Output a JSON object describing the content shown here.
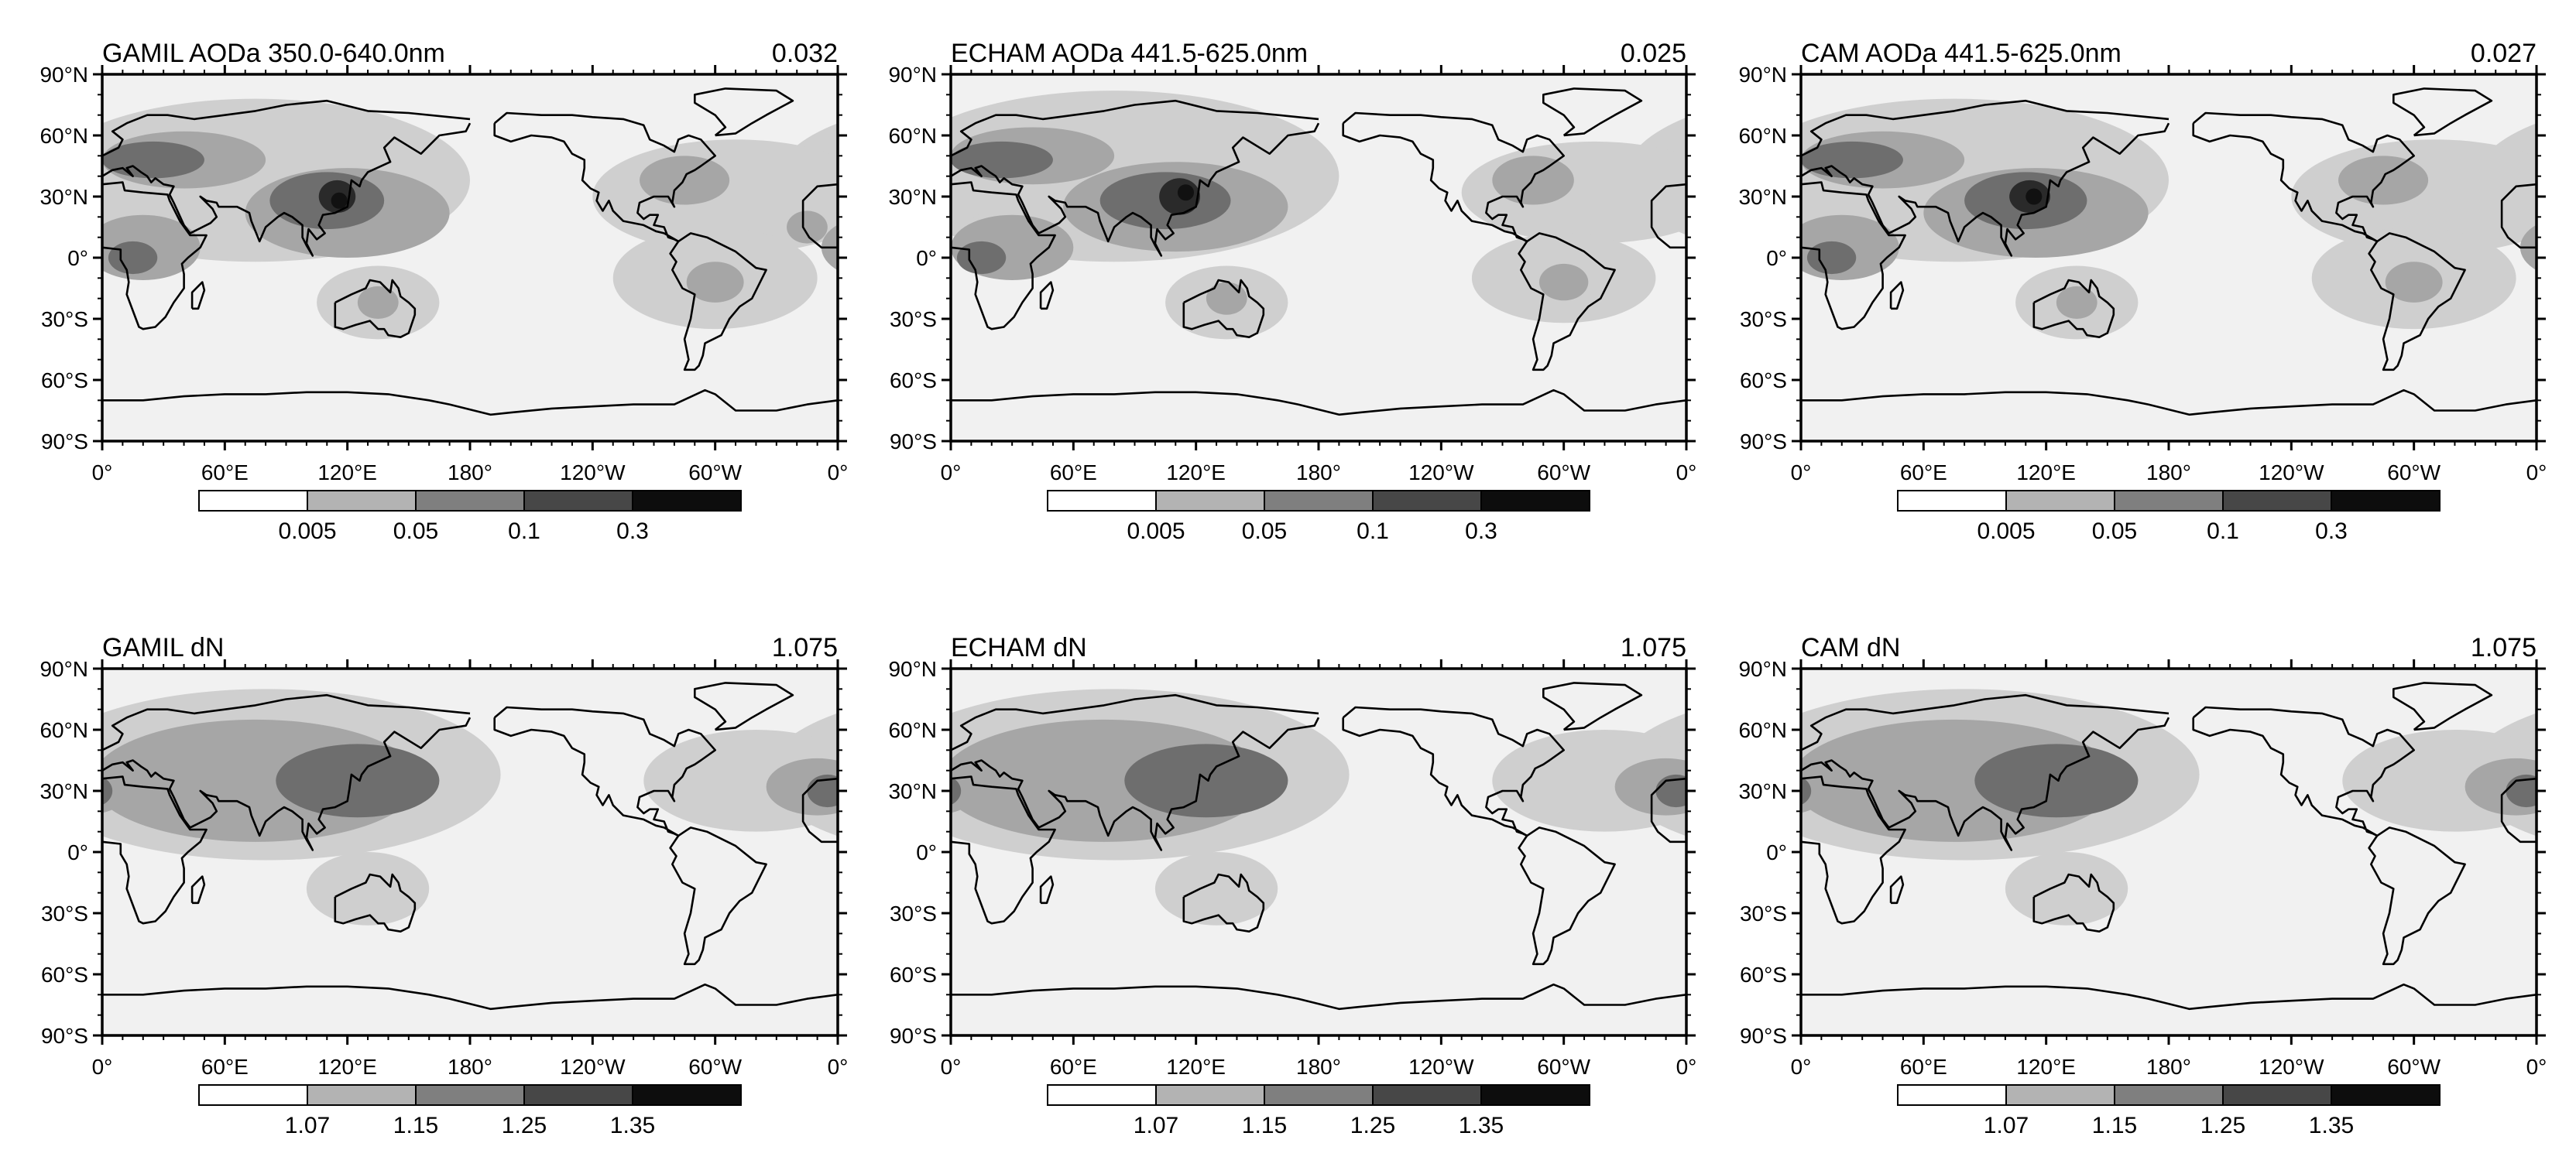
{
  "figure": {
    "longitude_ticks": [
      "0°",
      "60°E",
      "120°E",
      "180°",
      "120°W",
      "60°W",
      "0°"
    ],
    "latitude_ticks": [
      "90°N",
      "60°N",
      "30°N",
      "0°",
      "30°S",
      "60°S",
      "90°S"
    ],
    "colorbars": {
      "aod": {
        "labels": [
          "0.005",
          "0.05",
          "0.1",
          "0.3"
        ],
        "fills": [
          "#ffffff",
          "#b3b3b3",
          "#7f7f7f",
          "#474747",
          "#0d0d0d"
        ]
      },
      "dn": {
        "labels": [
          "1.07",
          "1.15",
          "1.25",
          "1.35"
        ],
        "fills": [
          "#ffffff",
          "#b3b3b3",
          "#7f7f7f",
          "#474747",
          "#0d0d0d"
        ]
      }
    },
    "background_fill": "#f1f1f1",
    "panels": [
      {
        "row": 0,
        "col": 0,
        "title_left": "GAMIL  AODa 350.0-640.0nm",
        "title_right": "0.032",
        "colorbar": "aod",
        "variant": "aod_gamil"
      },
      {
        "row": 0,
        "col": 1,
        "title_left": "ECHAM  AODa 441.5-625.0nm",
        "title_right": "0.025",
        "colorbar": "aod",
        "variant": "aod_echam"
      },
      {
        "row": 0,
        "col": 2,
        "title_left": "CAM  AODa 441.5-625.0nm",
        "title_right": "0.027",
        "colorbar": "aod",
        "variant": "aod_cam"
      },
      {
        "row": 1,
        "col": 0,
        "title_left": "GAMIL  dN",
        "title_right": "1.075",
        "colorbar": "dn",
        "variant": "dn"
      },
      {
        "row": 1,
        "col": 1,
        "title_left": "ECHAM  dN",
        "title_right": "1.075",
        "colorbar": "dn",
        "variant": "dn"
      },
      {
        "row": 1,
        "col": 2,
        "title_left": "CAM  dN",
        "title_right": "1.075",
        "colorbar": "dn",
        "variant": "dn"
      }
    ]
  }
}
